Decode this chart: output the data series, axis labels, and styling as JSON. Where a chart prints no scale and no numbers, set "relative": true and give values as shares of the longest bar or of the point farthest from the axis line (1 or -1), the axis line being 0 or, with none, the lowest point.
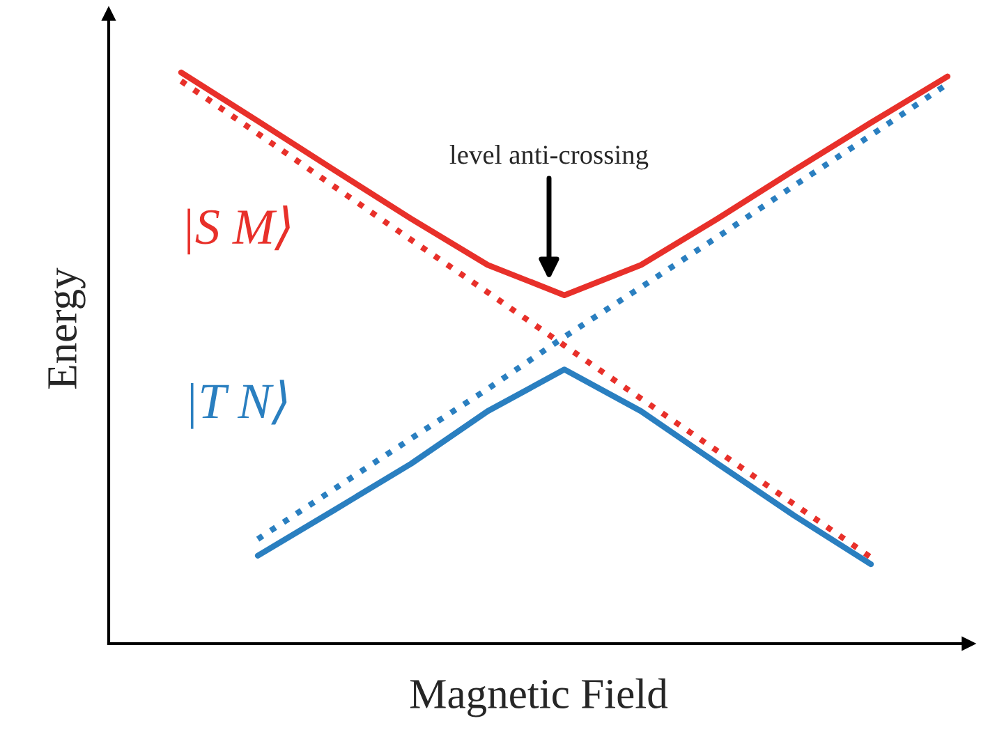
{
  "chart_data": {
    "type": "line",
    "relative": true,
    "xlabel": "Magnetic Field",
    "ylabel": "Energy",
    "legend": false,
    "categories": [
      null,
      null,
      null,
      null,
      null,
      null,
      null,
      null,
      null,
      null,
      null
    ],
    "annotations": [
      "level anti-crossing"
    ],
    "series": [
      {
        "name": "|S M⟩",
        "color": "#e8302a",
        "line_style": "solid",
        "values": [
          1.0,
          0.915,
          0.829,
          0.744,
          0.663,
          0.61,
          0.663,
          0.744,
          0.829,
          0.912,
          0.993
        ]
      },
      {
        "name": "|T N⟩",
        "color": "#2a7fc0",
        "line_style": "solid",
        "values": [
          null,
          0.154,
          0.234,
          0.315,
          0.407,
          0.48,
          0.407,
          0.315,
          0.224,
          0.139,
          null
        ]
      },
      {
        "color": "#e8302a",
        "line_style": "dotted",
        "values": [
          0.985,
          0.893,
          0.8,
          0.707,
          0.615,
          0.522,
          0.429,
          0.337,
          0.244,
          0.151,
          null
        ]
      },
      {
        "color": "#2a7fc0",
        "line_style": "dotted",
        "values": [
          null,
          0.183,
          0.271,
          0.359,
          0.446,
          0.537,
          0.624,
          0.712,
          0.802,
          0.89,
          0.98
        ]
      }
    ]
  }
}
